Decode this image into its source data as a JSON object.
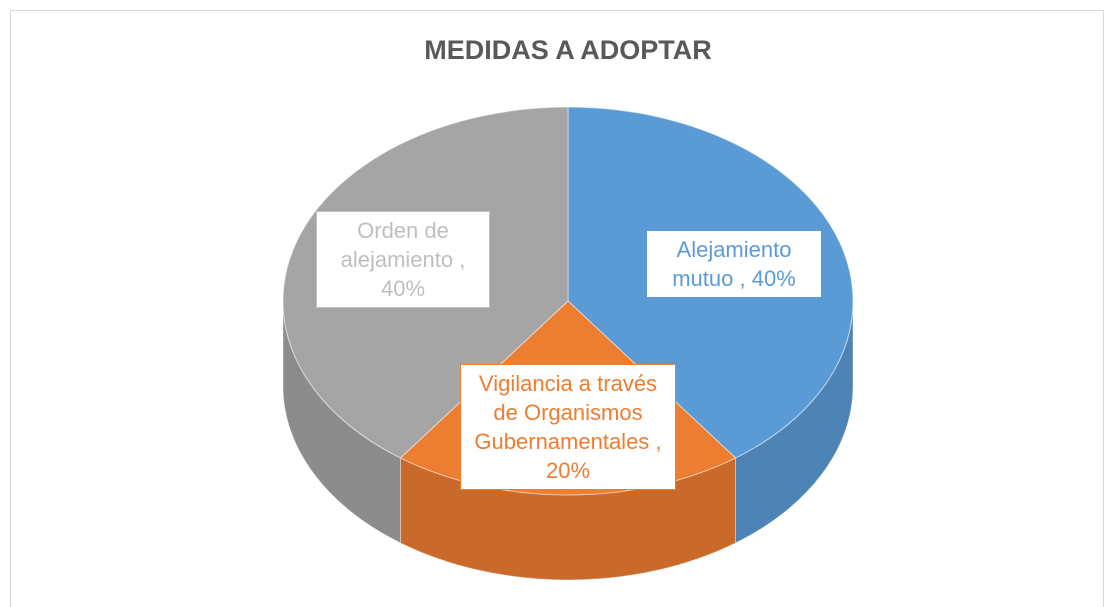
{
  "chart_data": {
    "type": "pie3d",
    "title": "MEDIDAS A ADOPTAR",
    "categories": [
      "Alejamiento mutuo",
      "Vigilancia a través de Organismos Gubernamentales",
      "Orden de alejamiento"
    ],
    "values": [
      40,
      20,
      40
    ],
    "value_labels": [
      "40%",
      "20%",
      "40%"
    ],
    "label_separator": ",",
    "colors": [
      "#5b9bd5",
      "#ed7d31",
      "#a5a5a5"
    ],
    "label_colors": [
      "#5b9bd5",
      "#ed7d31",
      "#bfbfbf"
    ]
  }
}
